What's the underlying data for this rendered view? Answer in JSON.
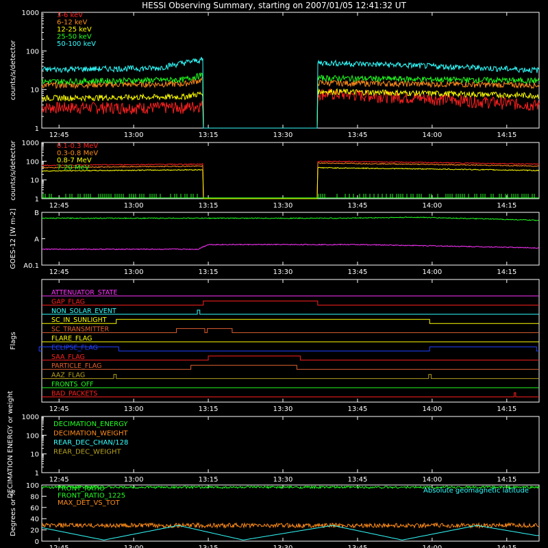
{
  "title": "HESSI Observing Summary, starting on 2007/01/05 12:41:32 UT",
  "colors": {
    "background": "#000000",
    "axes": "#ffffff",
    "red": "#ff2020",
    "orange": "#ff8c1a",
    "yellow": "#ffff00",
    "green": "#22ff22",
    "cyan": "#33ffff",
    "magenta": "#ff33ff",
    "blue": "#2040ff",
    "olive": "#b4a020",
    "brown": "#e06030"
  },
  "chart_data": [
    {
      "type": "line",
      "id": "lo",
      "ylabel": "counts/s/detector",
      "ylog": true,
      "ylim": [
        1,
        1000
      ],
      "yticks": [
        1,
        10,
        100,
        1000
      ],
      "ytick_labels": [
        "1",
        "10",
        "100",
        "1000"
      ],
      "xticks": [
        "12:45",
        "13:00",
        "13:15",
        "13:30",
        "13:45",
        "14:00",
        "14:15"
      ],
      "gap": {
        "start": "13:14",
        "end": "13:37"
      },
      "legend_position": "top-left",
      "series": [
        {
          "name": "3-6 keV",
          "color": "red",
          "values": [
            {
              "t": "12:41",
              "y": 3.5
            },
            {
              "t": "13:10",
              "y": 3.5
            },
            {
              "t": "13:14",
              "y": 4
            },
            {
              "t": "13:37",
              "y": 8
            },
            {
              "t": "14:21",
              "y": 4
            }
          ]
        },
        {
          "name": "6-12 keV",
          "color": "orange",
          "values": [
            {
              "t": "12:41",
              "y": 13
            },
            {
              "t": "13:10",
              "y": 14
            },
            {
              "t": "13:14",
              "y": 18
            },
            {
              "t": "13:37",
              "y": 15
            },
            {
              "t": "14:21",
              "y": 13
            }
          ]
        },
        {
          "name": "12-25 keV",
          "color": "yellow",
          "values": [
            {
              "t": "12:41",
              "y": 6
            },
            {
              "t": "13:10",
              "y": 6.5
            },
            {
              "t": "13:14",
              "y": 8
            },
            {
              "t": "13:37",
              "y": 9
            },
            {
              "t": "14:21",
              "y": 7
            }
          ]
        },
        {
          "name": "25-50 keV",
          "color": "green",
          "values": [
            {
              "t": "12:41",
              "y": 16
            },
            {
              "t": "13:10",
              "y": 18
            },
            {
              "t": "13:14",
              "y": 24
            },
            {
              "t": "13:37",
              "y": 20
            },
            {
              "t": "14:21",
              "y": 17
            }
          ]
        },
        {
          "name": "50-100 keV",
          "color": "cyan",
          "values": [
            {
              "t": "12:41",
              "y": 33
            },
            {
              "t": "13:05",
              "y": 36
            },
            {
              "t": "13:14",
              "y": 60
            },
            {
              "t": "13:37",
              "y": 50
            },
            {
              "t": "14:21",
              "y": 32
            }
          ]
        }
      ]
    },
    {
      "type": "line",
      "id": "hi",
      "ylabel": "counts/s/detector",
      "ylog": true,
      "ylim": [
        1,
        1000
      ],
      "yticks": [
        1,
        10,
        100,
        1000
      ],
      "ytick_labels": [
        "1",
        "10",
        "100",
        "1000"
      ],
      "xticks": [
        "12:45",
        "13:00",
        "13:15",
        "13:30",
        "13:45",
        "14:00",
        "14:15"
      ],
      "gap": {
        "start": "13:14",
        "end": "13:37"
      },
      "legend_position": "top-left",
      "series": [
        {
          "name": "0.1-0.3 MeV",
          "color": "red",
          "values": [
            {
              "t": "12:41",
              "y": 60
            },
            {
              "t": "13:14",
              "y": 70
            },
            {
              "t": "13:37",
              "y": 100
            },
            {
              "t": "14:21",
              "y": 70
            }
          ]
        },
        {
          "name": "0.3-0.8 MeV",
          "color": "orange",
          "values": [
            {
              "t": "12:41",
              "y": 45
            },
            {
              "t": "13:14",
              "y": 55
            },
            {
              "t": "13:37",
              "y": 80
            },
            {
              "t": "14:21",
              "y": 55
            }
          ]
        },
        {
          "name": "0.8-7 MeV",
          "color": "yellow",
          "values": [
            {
              "t": "12:41",
              "y": 30
            },
            {
              "t": "13:14",
              "y": 35
            },
            {
              "t": "13:37",
              "y": 45
            },
            {
              "t": "14:21",
              "y": 32
            }
          ]
        },
        {
          "name": "7-20 MeV",
          "color": "green",
          "values": [
            {
              "t": "12:41",
              "y": 1.1
            },
            {
              "t": "14:21",
              "y": 1.1
            }
          ]
        }
      ]
    },
    {
      "type": "line",
      "id": "goes",
      "ylabel": "GOES-12 [W m-2]",
      "ylog": true,
      "ylim": [
        1e-09,
        1e-07
      ],
      "ytick_labels": [
        "A0.1",
        "A",
        "B"
      ],
      "xticks": [
        "12:45",
        "13:00",
        "13:15",
        "13:30",
        "13:45",
        "14:00",
        "14:15"
      ],
      "series": [
        {
          "name": "GOES long",
          "color": "green",
          "values": [
            {
              "t": "12:41",
              "y": 6e-08
            },
            {
              "t": "13:41",
              "y": 6e-08
            },
            {
              "t": "13:57",
              "y": 6.5e-08
            },
            {
              "t": "14:21",
              "y": 5e-08
            }
          ]
        },
        {
          "name": "GOES short",
          "color": "magenta",
          "values": [
            {
              "t": "12:41",
              "y": 4e-09
            },
            {
              "t": "13:13",
              "y": 4e-09
            },
            {
              "t": "13:15",
              "y": 6e-09
            },
            {
              "t": "13:45",
              "y": 6e-09
            },
            {
              "t": "14:21",
              "y": 4.5e-09
            }
          ]
        }
      ]
    },
    {
      "type": "line",
      "id": "flags",
      "ylabel": "Flags",
      "xticks": [
        "12:45",
        "13:00",
        "13:15",
        "13:30",
        "13:45",
        "14:00",
        "14:15"
      ],
      "series": [
        {
          "name": "ATTENUATOR_STATE",
          "color": "magenta",
          "on": []
        },
        {
          "name": "GAP_FLAG",
          "color": "red",
          "on": [
            [
              "13:14",
              "13:37"
            ]
          ]
        },
        {
          "name": "NON_SOLAR_EVENT",
          "color": "cyan",
          "on": [
            [
              "13:12.8",
              "13:13.3"
            ]
          ]
        },
        {
          "name": "SC_IN_SUNLIGHT",
          "color": "yellow",
          "on": [
            [
              "12:56.5",
              "13:59.5"
            ]
          ]
        },
        {
          "name": "SC_TRANSMITTER",
          "color": "brown",
          "on": [
            [
              "13:08.6",
              "13:14.3"
            ],
            [
              "13:14.8",
              "13:19.8"
            ]
          ]
        },
        {
          "name": "FLARE_FLAG",
          "color": "yellow",
          "on": []
        },
        {
          "name": "ECLIPSE_FLAG",
          "color": "blue",
          "on": [
            [
              "12:41",
              "12:57"
            ],
            [
              "13:59.5",
              "14:21"
            ]
          ]
        },
        {
          "name": "SAA_FLAG",
          "color": "red",
          "on": [
            [
              "13:15",
              "13:33.5"
            ]
          ]
        },
        {
          "name": "PARTICLE_FLAG",
          "color": "brown",
          "on": [
            [
              "13:11.5",
              "13:32.8"
            ]
          ]
        },
        {
          "name": "AAZ_FLAG",
          "color": "olive",
          "on": [
            [
              "12:56",
              "12:56.5"
            ],
            [
              "13:59.3",
              "13:59.8"
            ]
          ]
        },
        {
          "name": "FRONTS_OFF",
          "color": "green",
          "on": []
        },
        {
          "name": "BAD_PACKETS",
          "color": "red",
          "on": [
            [
              "14:16.5",
              "14:16.8"
            ]
          ]
        }
      ]
    },
    {
      "type": "line",
      "id": "dec",
      "ylabel": "DECIMATION ENERGY or weight",
      "ylog": true,
      "ylim": [
        1,
        1000
      ],
      "yticks": [
        1,
        10,
        100,
        1000
      ],
      "ytick_labels": [
        "1",
        "10",
        "100",
        "1000"
      ],
      "xticks": [
        "12:45",
        "13:00",
        "13:15",
        "13:30",
        "13:45",
        "14:00",
        "14:15"
      ],
      "series": [
        {
          "name": "DECIMATION_ENERGY",
          "color": "green",
          "values": []
        },
        {
          "name": "DECIMATION_WEIGHT",
          "color": "orange",
          "values": []
        },
        {
          "name": "REAR_DEC_CHAN/128",
          "color": "cyan",
          "values": []
        },
        {
          "name": "REAR_DEC_WEIGHT",
          "color": "olive",
          "values": []
        }
      ]
    },
    {
      "type": "line",
      "id": "ratio",
      "ylabel": "Degrees or %",
      "ylim": [
        0,
        100
      ],
      "yticks": [
        0,
        20,
        40,
        60,
        80,
        100
      ],
      "ytick_labels": [
        "0",
        "20",
        "40",
        "60",
        "80",
        "100"
      ],
      "xticks": [
        "12:45",
        "13:00",
        "13:15",
        "13:30",
        "13:45",
        "14:00",
        "14:15"
      ],
      "series": [
        {
          "name": "FRONT_RATIO",
          "color": "green",
          "values": [
            {
              "t": "12:41",
              "y": 96
            },
            {
              "t": "13:14",
              "y": 96
            },
            {
              "t": "13:37",
              "y": 96
            },
            {
              "t": "14:21",
              "y": 96
            }
          ]
        },
        {
          "name": "FRONT_RATIO_1225",
          "color": "green",
          "values": []
        },
        {
          "name": "MAX_DET_VS_TOT",
          "color": "orange",
          "values": [
            {
              "t": "12:41",
              "y": 28
            },
            {
              "t": "13:14",
              "y": 28
            },
            {
              "t": "13:37",
              "y": 28
            },
            {
              "t": "14:21",
              "y": 28
            }
          ]
        },
        {
          "name": "Absolute geomagnetic latitude",
          "color": "cyan",
          "values": [
            {
              "t": "12:41",
              "y": 25
            },
            {
              "t": "12:54",
              "y": 2
            },
            {
              "t": "13:09",
              "y": 28
            },
            {
              "t": "13:22",
              "y": 2
            },
            {
              "t": "13:40",
              "y": 28
            },
            {
              "t": "13:54",
              "y": 2
            },
            {
              "t": "14:09",
              "y": 28
            },
            {
              "t": "14:21",
              "y": 10
            }
          ]
        }
      ]
    }
  ]
}
